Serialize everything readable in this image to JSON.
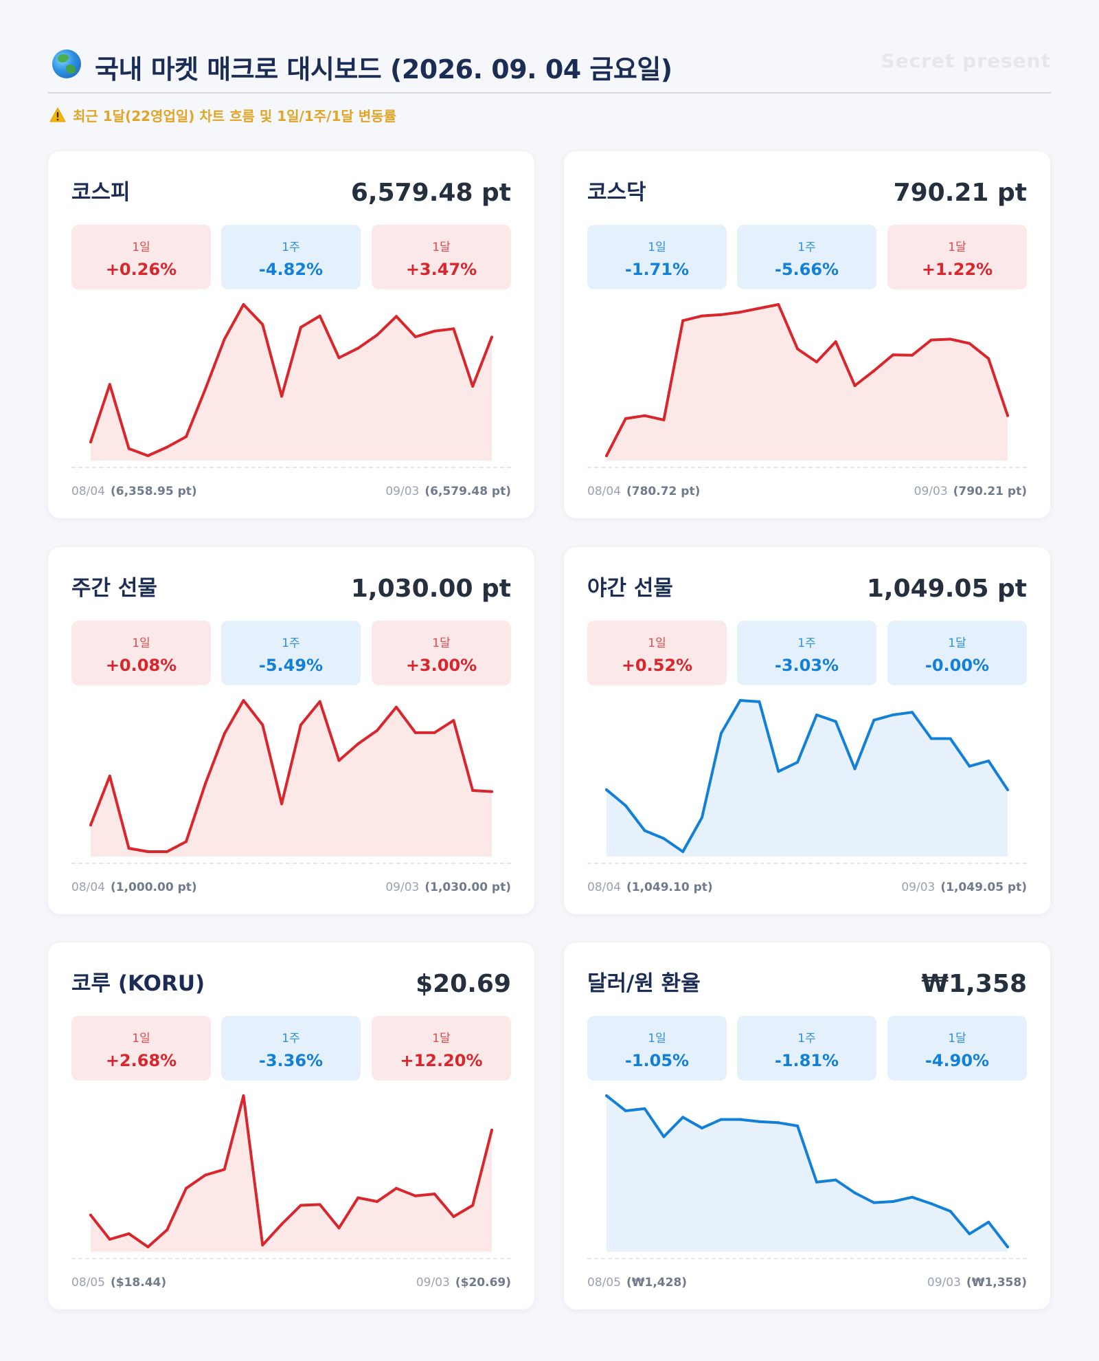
{
  "header": {
    "title": "국내 마켓 매크로 대시보드 (2026. 09. 04 금요일)",
    "watermark": "Secret present",
    "subtitle": "최근 1달(22영업일) 차트 흐름 및 1일/1주/1달 변동률",
    "icons": {
      "title": "globe-icon",
      "subtitle": "warning-icon"
    }
  },
  "colors": {
    "up": "#d8262c",
    "up_fill": "#fde8e8",
    "down": "#1380d8",
    "down_fill": "#e6f1fb"
  },
  "cards": [
    {
      "name": "코스피",
      "price": "6,579.48 pt",
      "changes": [
        {
          "label": "1일",
          "value": "+0.26%",
          "dir": "up"
        },
        {
          "label": "1주",
          "value": "-4.82%",
          "dir": "down"
        },
        {
          "label": "1달",
          "value": "+3.47%",
          "dir": "up"
        }
      ],
      "start_date": "08/04",
      "start_value": "(6,358.95 pt)",
      "end_date": "09/03",
      "end_value": "(6,579.48 pt)"
    },
    {
      "name": "코스닥",
      "price": "790.21 pt",
      "changes": [
        {
          "label": "1일",
          "value": "-1.71%",
          "dir": "down"
        },
        {
          "label": "1주",
          "value": "-5.66%",
          "dir": "down"
        },
        {
          "label": "1달",
          "value": "+1.22%",
          "dir": "up"
        }
      ],
      "start_date": "08/04",
      "start_value": "(780.72 pt)",
      "end_date": "09/03",
      "end_value": "(790.21 pt)"
    },
    {
      "name": "주간 선물",
      "price": "1,030.00 pt",
      "changes": [
        {
          "label": "1일",
          "value": "+0.08%",
          "dir": "up"
        },
        {
          "label": "1주",
          "value": "-5.49%",
          "dir": "down"
        },
        {
          "label": "1달",
          "value": "+3.00%",
          "dir": "up"
        }
      ],
      "start_date": "08/04",
      "start_value": "(1,000.00 pt)",
      "end_date": "09/03",
      "end_value": "(1,030.00 pt)"
    },
    {
      "name": "야간 선물",
      "price": "1,049.05 pt",
      "changes": [
        {
          "label": "1일",
          "value": "+0.52%",
          "dir": "up"
        },
        {
          "label": "1주",
          "value": "-3.03%",
          "dir": "down"
        },
        {
          "label": "1달",
          "value": "-0.00%",
          "dir": "down"
        }
      ],
      "start_date": "08/04",
      "start_value": "(1,049.10 pt)",
      "end_date": "09/03",
      "end_value": "(1,049.05 pt)"
    },
    {
      "name": "코루 (KORU)",
      "price": "$20.69",
      "changes": [
        {
          "label": "1일",
          "value": "+2.68%",
          "dir": "up"
        },
        {
          "label": "1주",
          "value": "-3.36%",
          "dir": "down"
        },
        {
          "label": "1달",
          "value": "+12.20%",
          "dir": "up"
        }
      ],
      "start_date": "08/05",
      "start_value": "($18.44)",
      "end_date": "09/03",
      "end_value": "($20.69)"
    },
    {
      "name": "달러/원 환율",
      "price": "₩1,358",
      "changes": [
        {
          "label": "1일",
          "value": "-1.05%",
          "dir": "down"
        },
        {
          "label": "1주",
          "value": "-1.81%",
          "dir": "down"
        },
        {
          "label": "1달",
          "value": "-4.90%",
          "dir": "down"
        }
      ],
      "start_date": "08/05",
      "start_value": "(₩1,428)",
      "end_date": "09/03",
      "end_value": "(₩1,358)"
    }
  ],
  "chart_data": [
    {
      "type": "area",
      "title": "코스피",
      "trend": "up",
      "values": [
        6358.95,
        6480,
        6345,
        6330,
        6348,
        6370,
        6470,
        6575,
        6648,
        6606,
        6455,
        6600,
        6624,
        6536,
        6556,
        6584,
        6623,
        6580,
        6592,
        6597,
        6476,
        6579.48
      ]
    },
    {
      "type": "area",
      "title": "코스닥",
      "trend": "up",
      "values": [
        780.72,
        789.5,
        790.2,
        789.2,
        812.7,
        813.8,
        814.1,
        814.7,
        815.6,
        816.5,
        806,
        802.9,
        807.7,
        797.3,
        800.8,
        804.6,
        804.5,
        808.1,
        808.3,
        807.3,
        803.7,
        790.21
      ]
    },
    {
      "type": "area",
      "title": "주간 선물",
      "trend": "up",
      "values": [
        1000.0,
        1044,
        979,
        976,
        976,
        985,
        1037,
        1082,
        1112,
        1090,
        1019,
        1090,
        1111,
        1058,
        1073,
        1085,
        1106,
        1083,
        1083,
        1094,
        1031,
        1030.0
      ]
    },
    {
      "type": "area",
      "title": "야간 선물",
      "trend": "down",
      "values": [
        1049.1,
        1037,
        1018,
        1012,
        1002,
        1028,
        1092,
        1117,
        1116,
        1063,
        1070,
        1106,
        1101,
        1065,
        1102,
        1106,
        1108,
        1088,
        1088,
        1067,
        1071,
        1049.05
      ]
    },
    {
      "type": "area",
      "title": "코루 (KORU)",
      "trend": "up",
      "values": [
        18.44,
        17.8,
        17.95,
        17.6,
        18.05,
        19.15,
        19.5,
        19.65,
        21.6,
        17.65,
        18.2,
        18.7,
        18.72,
        18.1,
        18.9,
        18.8,
        19.15,
        18.95,
        19.0,
        18.4,
        18.7,
        20.69
      ]
    },
    {
      "type": "area",
      "title": "달러/원 환율",
      "trend": "down",
      "values": [
        1428,
        1421,
        1422,
        1409,
        1418,
        1413,
        1417,
        1417,
        1416,
        1415.5,
        1414,
        1388,
        1389,
        1383,
        1378.5,
        1379,
        1381,
        1378,
        1374.5,
        1364,
        1369.5,
        1358
      ]
    }
  ]
}
